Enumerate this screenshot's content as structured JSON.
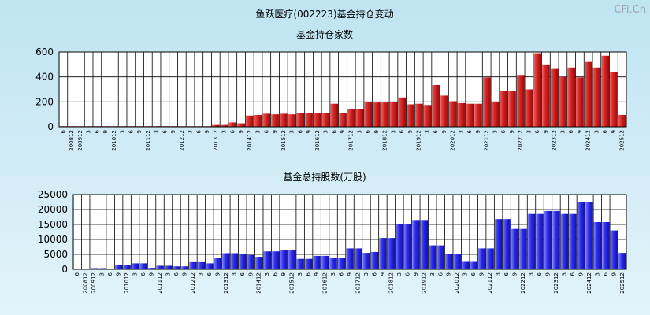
{
  "page_title": "鱼跃医疗(002223)基金持仓变动",
  "watermark": "CFi.Cn",
  "colors": {
    "red": "#d42222",
    "blue": "#2a2af0",
    "grid": "#000000"
  },
  "chart_data": [
    {
      "type": "bar",
      "title": "基金持仓家数",
      "ylim": [
        0,
        600
      ],
      "yticks": [
        "0",
        "200",
        "400",
        "600"
      ],
      "categories": [
        "6",
        "200812",
        "200912",
        "3",
        "6",
        "9",
        "201012",
        "3",
        "6",
        "9",
        "201112",
        "3",
        "6",
        "9",
        "201212",
        "3",
        "6",
        "9",
        "201312",
        "3",
        "6",
        "9",
        "201412",
        "3",
        "6",
        "9",
        "201512",
        "3",
        "6",
        "9",
        "201612",
        "3",
        "6",
        "9",
        "201712",
        "3",
        "6",
        "9",
        "201812",
        "3",
        "6",
        "9",
        "201912",
        "3",
        "6",
        "9",
        "202012",
        "3",
        "6",
        "9",
        "202112",
        "3",
        "6",
        "9",
        "202212",
        "3",
        "6",
        "9",
        "202312",
        "3",
        "6",
        "9",
        "202412",
        "3",
        "6",
        "9",
        "202512"
      ],
      "values": [
        2,
        2,
        2,
        2,
        2,
        2,
        2,
        2,
        2,
        2,
        2,
        2,
        2,
        2,
        2,
        2,
        3,
        3,
        15,
        15,
        35,
        28,
        90,
        95,
        105,
        100,
        105,
        100,
        110,
        110,
        110,
        110,
        185,
        110,
        145,
        140,
        200,
        195,
        195,
        200,
        235,
        180,
        185,
        175,
        335,
        250,
        205,
        190,
        185,
        185,
        395,
        200,
        290,
        285,
        415,
        300,
        590,
        500,
        470,
        400,
        475,
        395,
        520,
        475,
        570,
        440,
        95
      ]
    },
    {
      "type": "bar",
      "title": "基金总持股数(万股)",
      "ylim": [
        0,
        25000
      ],
      "yticks": [
        "0",
        "5000",
        "10000",
        "15000",
        "20000",
        "25000"
      ],
      "categories": [
        "6",
        "200812",
        "200912",
        "3",
        "6",
        "9",
        "201012",
        "3",
        "6",
        "9",
        "201112",
        "3",
        "6",
        "9",
        "201212",
        "3",
        "6",
        "9",
        "201312",
        "3",
        "6",
        "9",
        "201412",
        "3",
        "6",
        "9",
        "201512",
        "3",
        "6",
        "9",
        "201612",
        "3",
        "6",
        "9",
        "201712",
        "3",
        "6",
        "9",
        "201812",
        "3",
        "6",
        "9",
        "201912",
        "3",
        "6",
        "9",
        "202012",
        "3",
        "6",
        "9",
        "202112",
        "3",
        "6",
        "9",
        "202212",
        "3",
        "6",
        "9",
        "202312",
        "3",
        "6",
        "9",
        "202412",
        "3",
        "6",
        "9",
        "202512"
      ],
      "values": [
        200,
        200,
        400,
        400,
        200,
        1500,
        1500,
        2000,
        2000,
        500,
        1200,
        1200,
        1000,
        1000,
        2400,
        2400,
        2000,
        3800,
        5400,
        5400,
        5000,
        4800,
        4200,
        6000,
        6000,
        6500,
        6500,
        3500,
        3500,
        4500,
        4500,
        3800,
        3800,
        7000,
        7000,
        5500,
        5800,
        10500,
        10500,
        15000,
        15000,
        16500,
        16500,
        8000,
        8000,
        5000,
        5000,
        2500,
        2500,
        7000,
        7000,
        16800,
        16800,
        13500,
        13500,
        18500,
        18500,
        19500,
        19500,
        18500,
        18500,
        22500,
        22500,
        15800,
        15800,
        13000,
        5500
      ]
    }
  ]
}
